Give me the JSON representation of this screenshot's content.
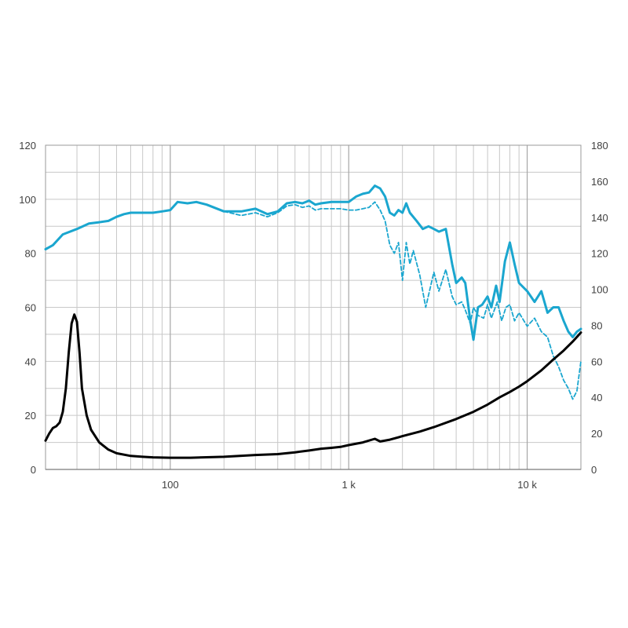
{
  "chart_data": {
    "type": "line",
    "x_scale": "log",
    "xlim": [
      20,
      20000
    ],
    "ylim_left": [
      0,
      120
    ],
    "ylim_right": [
      0,
      180
    ],
    "grid": true,
    "legend": "none",
    "x_tick_values": [
      100,
      1000,
      10000
    ],
    "x_tick_labels": [
      "100",
      "1 k",
      "10 k"
    ],
    "y_left_ticks": [
      "0",
      "20",
      "40",
      "60",
      "80",
      "100",
      "120"
    ],
    "y_right_ticks": [
      "0",
      "20",
      "40",
      "60",
      "80",
      "100",
      "120",
      "140",
      "160",
      "180"
    ],
    "colors": {
      "response": "#1aa6cf",
      "impedance": "#000000"
    },
    "series": [
      {
        "axis": "left",
        "style": "solid",
        "color": "#1aa6cf",
        "points": [
          [
            20,
            81.5
          ],
          [
            22,
            83
          ],
          [
            25,
            87
          ],
          [
            30,
            89
          ],
          [
            35,
            91
          ],
          [
            40,
            91.5
          ],
          [
            45,
            92
          ],
          [
            50,
            93.5
          ],
          [
            55,
            94.5
          ],
          [
            60,
            95
          ],
          [
            70,
            95
          ],
          [
            80,
            95
          ],
          [
            90,
            95.5
          ],
          [
            100,
            96
          ],
          [
            110,
            99
          ],
          [
            125,
            98.5
          ],
          [
            140,
            99
          ],
          [
            160,
            98
          ],
          [
            200,
            95.5
          ],
          [
            250,
            95.5
          ],
          [
            300,
            96.5
          ],
          [
            350,
            94.5
          ],
          [
            400,
            95.5
          ],
          [
            450,
            98.5
          ],
          [
            500,
            99
          ],
          [
            550,
            98.5
          ],
          [
            600,
            99.5
          ],
          [
            650,
            98
          ],
          [
            700,
            98.5
          ],
          [
            800,
            99
          ],
          [
            900,
            99
          ],
          [
            1000,
            99
          ],
          [
            1100,
            101
          ],
          [
            1200,
            102
          ],
          [
            1300,
            102.5
          ],
          [
            1400,
            105
          ],
          [
            1500,
            104
          ],
          [
            1600,
            101
          ],
          [
            1700,
            95
          ],
          [
            1800,
            94
          ],
          [
            1900,
            96
          ],
          [
            2000,
            95
          ],
          [
            2100,
            98.5
          ],
          [
            2200,
            95
          ],
          [
            2400,
            92
          ],
          [
            2600,
            89
          ],
          [
            2800,
            90
          ],
          [
            3000,
            89
          ],
          [
            3200,
            88
          ],
          [
            3500,
            89
          ],
          [
            3800,
            76
          ],
          [
            4000,
            69
          ],
          [
            4300,
            71
          ],
          [
            4500,
            69
          ],
          [
            4800,
            55
          ],
          [
            5000,
            48
          ],
          [
            5300,
            60
          ],
          [
            5600,
            61
          ],
          [
            6000,
            64
          ],
          [
            6300,
            60
          ],
          [
            6700,
            68
          ],
          [
            7000,
            62
          ],
          [
            7500,
            77
          ],
          [
            8000,
            84
          ],
          [
            8500,
            76
          ],
          [
            9000,
            69
          ],
          [
            10000,
            66
          ],
          [
            11000,
            62
          ],
          [
            12000,
            66
          ],
          [
            13000,
            58
          ],
          [
            14000,
            60
          ],
          [
            15000,
            60
          ],
          [
            16000,
            55
          ],
          [
            17000,
            51
          ],
          [
            18000,
            49
          ],
          [
            19000,
            51
          ],
          [
            20000,
            52
          ]
        ]
      },
      {
        "axis": "left",
        "style": "dashed",
        "color": "#1aa6cf",
        "points": [
          [
            200,
            95.5
          ],
          [
            250,
            94
          ],
          [
            300,
            95
          ],
          [
            350,
            93.5
          ],
          [
            400,
            95
          ],
          [
            450,
            97.5
          ],
          [
            500,
            98
          ],
          [
            550,
            97
          ],
          [
            600,
            97.5
          ],
          [
            650,
            96
          ],
          [
            700,
            96.5
          ],
          [
            800,
            96.5
          ],
          [
            900,
            96.5
          ],
          [
            1000,
            96
          ],
          [
            1100,
            96
          ],
          [
            1200,
            96.5
          ],
          [
            1300,
            97
          ],
          [
            1400,
            99
          ],
          [
            1500,
            96
          ],
          [
            1600,
            92
          ],
          [
            1700,
            83
          ],
          [
            1800,
            80
          ],
          [
            1900,
            84
          ],
          [
            2000,
            70
          ],
          [
            2100,
            84
          ],
          [
            2200,
            76
          ],
          [
            2300,
            81
          ],
          [
            2500,
            72
          ],
          [
            2700,
            60
          ],
          [
            3000,
            73
          ],
          [
            3200,
            66
          ],
          [
            3500,
            74
          ],
          [
            3800,
            64
          ],
          [
            4000,
            61
          ],
          [
            4300,
            62
          ],
          [
            4500,
            59
          ],
          [
            4800,
            54
          ],
          [
            5000,
            60
          ],
          [
            5300,
            57
          ],
          [
            5700,
            56
          ],
          [
            6000,
            61
          ],
          [
            6300,
            56
          ],
          [
            6800,
            62
          ],
          [
            7200,
            55
          ],
          [
            7600,
            60
          ],
          [
            8000,
            61
          ],
          [
            8500,
            55
          ],
          [
            9000,
            58
          ],
          [
            10000,
            53
          ],
          [
            11000,
            56
          ],
          [
            12000,
            51
          ],
          [
            13000,
            49
          ],
          [
            14000,
            42
          ],
          [
            15000,
            38
          ],
          [
            16000,
            33
          ],
          [
            17000,
            30
          ],
          [
            18000,
            26
          ],
          [
            19000,
            29
          ],
          [
            20000,
            40
          ]
        ]
      },
      {
        "axis": "right",
        "style": "solid",
        "color": "#000000",
        "points": [
          [
            20,
            16
          ],
          [
            21,
            20
          ],
          [
            22,
            23
          ],
          [
            23,
            24
          ],
          [
            24,
            26
          ],
          [
            25,
            32
          ],
          [
            26,
            45
          ],
          [
            27,
            65
          ],
          [
            28,
            81
          ],
          [
            29,
            86
          ],
          [
            30,
            82
          ],
          [
            31,
            65
          ],
          [
            32,
            45
          ],
          [
            34,
            30
          ],
          [
            36,
            22
          ],
          [
            40,
            15
          ],
          [
            45,
            11
          ],
          [
            50,
            9
          ],
          [
            60,
            7.5
          ],
          [
            70,
            7
          ],
          [
            80,
            6.7
          ],
          [
            100,
            6.5
          ],
          [
            130,
            6.5
          ],
          [
            200,
            7
          ],
          [
            300,
            8
          ],
          [
            400,
            8.5
          ],
          [
            500,
            9.5
          ],
          [
            600,
            10.5
          ],
          [
            700,
            11.5
          ],
          [
            800,
            12
          ],
          [
            900,
            12.5
          ],
          [
            1000,
            13.5
          ],
          [
            1200,
            15
          ],
          [
            1400,
            17
          ],
          [
            1500,
            15.5
          ],
          [
            1700,
            16.5
          ],
          [
            2000,
            18.5
          ],
          [
            2500,
            21
          ],
          [
            3000,
            23.5
          ],
          [
            4000,
            28
          ],
          [
            5000,
            32
          ],
          [
            6000,
            36
          ],
          [
            7000,
            40
          ],
          [
            8000,
            43
          ],
          [
            9000,
            46
          ],
          [
            10000,
            49
          ],
          [
            12000,
            55
          ],
          [
            14000,
            61
          ],
          [
            16000,
            66
          ],
          [
            18000,
            71
          ],
          [
            20000,
            76
          ]
        ]
      }
    ]
  }
}
